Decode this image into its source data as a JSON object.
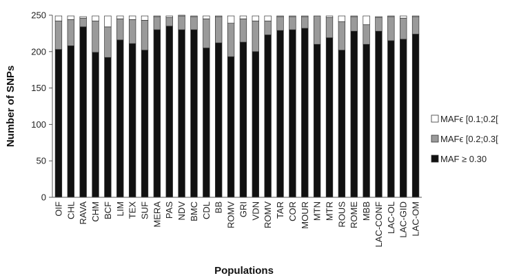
{
  "chart_data": {
    "type": "bar",
    "stacked": true,
    "xlabel": "Populations",
    "ylabel": "Number of SNPs",
    "ylim": [
      0,
      250
    ],
    "yticks": [
      0,
      50,
      100,
      150,
      200,
      250
    ],
    "grid": false,
    "legend_position": "right",
    "categories": [
      "OIF",
      "CHL",
      "RAVA",
      "CHM",
      "BCF",
      "LIM",
      "TEX",
      "SUF",
      "MERA",
      "PAS",
      "NDV",
      "BMC",
      "CDL",
      "BB",
      "ROMV",
      "GRI",
      "VDN",
      "ROMV",
      "TAR",
      "COR",
      "MOUR",
      "MTN",
      "MTR",
      "ROUS",
      "ROME",
      "MBB",
      "LAC-CONF",
      "LAC-OL",
      "LAC-GID",
      "LAC-OM"
    ],
    "series": [
      {
        "name": "MAF ≥ 0.30",
        "color": "#111111",
        "values": [
          203,
          208,
          234,
          199,
          192,
          216,
          211,
          202,
          230,
          235,
          230,
          230,
          205,
          212,
          193,
          213,
          200,
          223,
          229,
          230,
          232,
          210,
          219,
          202,
          228,
          210,
          228,
          215,
          217,
          224
        ]
      },
      {
        "name": "MAFϵ [0.2;0.3[",
        "color": "#9a9a9a",
        "values": [
          39,
          36,
          12,
          43,
          42,
          29,
          33,
          41,
          18,
          12,
          19,
          18,
          40,
          36,
          46,
          32,
          42,
          19,
          19,
          18,
          16,
          39,
          28,
          39,
          20,
          27,
          19,
          33,
          29,
          24
        ]
      },
      {
        "name": "MAFϵ [0.1;0.2[",
        "color": "#ffffff",
        "values": [
          7,
          5,
          2,
          7,
          15,
          4,
          5,
          6,
          1,
          2,
          1,
          1,
          4,
          1,
          10,
          4,
          7,
          7,
          1,
          1,
          1,
          0,
          2,
          8,
          1,
          12,
          1,
          1,
          3,
          1
        ]
      }
    ]
  }
}
